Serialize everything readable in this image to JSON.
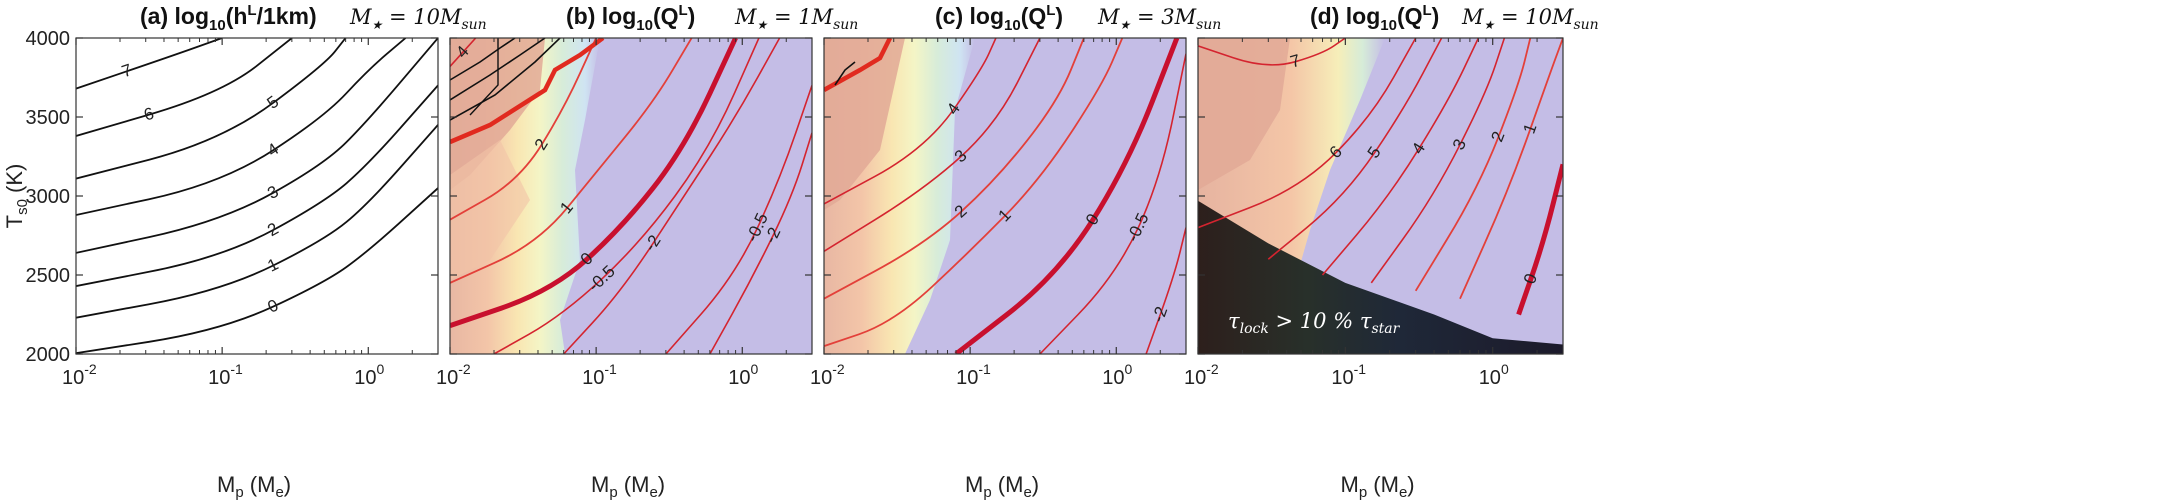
{
  "figure": {
    "y_axis_label": "T_s0 (K)",
    "y_label_main": "T",
    "y_label_sub": "s0",
    "y_label_unit": " (K)",
    "x_label_main": "M",
    "x_label_sub": "p",
    "x_label_unit": " (M",
    "x_label_unit_sub": "e",
    "x_label_close": ")",
    "x_ticks": [
      {
        "value": 0.01,
        "base": "10",
        "exp": "-2"
      },
      {
        "value": 0.1,
        "base": "10",
        "exp": "-1"
      },
      {
        "value": 1,
        "base": "10",
        "exp": "0"
      }
    ],
    "y_ticks": [
      "2000",
      "2500",
      "3000",
      "3500",
      "4000"
    ],
    "colors": {
      "line_black": "#111111",
      "line_red": "#d4242f",
      "line_thick_red": "#c8102e",
      "line_orange": "#e36a2a",
      "bg_purple": "#c4bde6",
      "bg_salmon": "#e8b7a3",
      "bg_peach": "#f6c8a8",
      "bg_yellow": "#f8f2c4",
      "bg_lightblue": "#d3e7ef",
      "dark_region": "#1c1a2b"
    },
    "annotation": {
      "text_main": "τ",
      "text_sub1": "lock",
      "text_mid": " > 10 % τ",
      "text_sub2": "star"
    }
  },
  "chart_data": [
    {
      "id": "a",
      "type": "contour",
      "title": "(a)  log10(hL/1km)",
      "title_text": "(a)  log",
      "title_sub": "10",
      "title_rest": "(h",
      "title_sup": "L",
      "title_end": "/1km)",
      "mass_note": "M★ = 10Msun",
      "mass_label": "M",
      "mass_star": "★",
      "mass_eq": " = 10M",
      "mass_sun": "sun",
      "xscale": "log",
      "xlim": [
        0.01,
        3
      ],
      "ylim": [
        2000,
        4000
      ],
      "contours": [
        {
          "level": "0",
          "points": [
            [
              0.01,
              2005
            ],
            [
              0.1,
              2150
            ],
            [
              0.5,
              2450
            ],
            [
              1,
              2650
            ],
            [
              3,
              3050
            ]
          ]
        },
        {
          "level": "1",
          "points": [
            [
              0.01,
              2230
            ],
            [
              0.1,
              2400
            ],
            [
              0.5,
              2720
            ],
            [
              1,
              2950
            ],
            [
              3,
              3450
            ]
          ]
        },
        {
          "level": "2",
          "points": [
            [
              0.01,
              2430
            ],
            [
              0.1,
              2610
            ],
            [
              0.5,
              2960
            ],
            [
              1,
              3200
            ],
            [
              3,
              3700
            ]
          ]
        },
        {
          "level": "3",
          "points": [
            [
              0.01,
              2640
            ],
            [
              0.1,
              2840
            ],
            [
              0.5,
              3200
            ],
            [
              1,
              3480
            ],
            [
              3,
              4000
            ]
          ]
        },
        {
          "level": "4",
          "points": [
            [
              0.01,
              2880
            ],
            [
              0.1,
              3080
            ],
            [
              0.5,
              3500
            ],
            [
              1,
              3800
            ],
            [
              1.8,
              4000
            ]
          ]
        },
        {
          "level": "5",
          "points": [
            [
              0.01,
              3110
            ],
            [
              0.1,
              3350
            ],
            [
              0.5,
              3830
            ],
            [
              0.7,
              4000
            ]
          ]
        },
        {
          "level": "6",
          "points": [
            [
              0.01,
              3380
            ],
            [
              0.1,
              3650
            ],
            [
              0.3,
              4000
            ]
          ]
        },
        {
          "level": "7",
          "points": [
            [
              0.01,
              3680
            ],
            [
              0.05,
              3900
            ],
            [
              0.1,
              4000
            ]
          ]
        }
      ]
    },
    {
      "id": "b",
      "type": "contour",
      "title": "(b)  log10(QL)",
      "title_text": "(b)  log",
      "title_sub": "10",
      "title_rest": "(Q",
      "title_sup": "L",
      "title_end": ")",
      "mass_note": "M★ = 1Msun",
      "mass_label": "M",
      "mass_star": "★",
      "mass_eq": " = 1M",
      "mass_sun": "sun",
      "xscale": "log",
      "xlim": [
        0.01,
        3
      ],
      "ylim": [
        2000,
        4000
      ],
      "contours": [
        {
          "level": "-2",
          "points": [
            [
              0.06,
              2000
            ],
            [
              0.15,
              2400
            ],
            [
              0.4,
              3000
            ],
            [
              0.9,
              3500
            ],
            [
              1.8,
              4000
            ]
          ]
        },
        {
          "level": "-2",
          "points": [
            [
              0.6,
              2000
            ],
            [
              1.2,
              2500
            ],
            [
              2.2,
              3000
            ],
            [
              3,
              3400
            ]
          ]
        },
        {
          "level": "-0.5",
          "points": [
            [
              0.02,
              2000
            ],
            [
              0.06,
              2250
            ],
            [
              0.2,
              2700
            ],
            [
              0.6,
              3300
            ],
            [
              1.3,
              4000
            ]
          ]
        },
        {
          "level": "-0.5",
          "points": [
            [
              0.3,
              2000
            ],
            [
              0.9,
              2500
            ],
            [
              1.8,
              3100
            ],
            [
              3,
              3700
            ]
          ]
        },
        {
          "level": "0",
          "points": [
            [
              0.01,
              2180
            ],
            [
              0.05,
              2400
            ],
            [
              0.15,
              2800
            ],
            [
              0.4,
              3300
            ],
            [
              0.9,
              4000
            ]
          ]
        },
        {
          "level": "1",
          "points": [
            [
              0.01,
              2450
            ],
            [
              0.04,
              2700
            ],
            [
              0.1,
              3150
            ],
            [
              0.25,
              3600
            ],
            [
              0.45,
              4000
            ]
          ]
        },
        {
          "level": "2",
          "points": [
            [
              0.01,
              2850
            ],
            [
              0.03,
              3100
            ],
            [
              0.06,
              3550
            ],
            [
              0.1,
              4000
            ]
          ]
        },
        {
          "level": "4",
          "points": [
            [
              0.01,
              3820
            ],
            [
              0.015,
              4000
            ]
          ]
        }
      ],
      "labels": [
        "4",
        "2",
        "1",
        "0",
        "-0.5",
        "-2",
        "2",
        "-0.5",
        "-2"
      ]
    },
    {
      "id": "c",
      "type": "contour",
      "title": "(c)  log10(QL)",
      "title_text": "(c)  log",
      "title_sub": "10",
      "title_rest": "(Q",
      "title_sup": "L",
      "title_end": ")",
      "mass_note": "M★ = 3Msun",
      "mass_label": "M",
      "mass_star": "★",
      "mass_eq": " = 3M",
      "mass_sun": "sun",
      "xscale": "log",
      "xlim": [
        0.01,
        3
      ],
      "ylim": [
        2000,
        4000
      ],
      "contours": [
        {
          "level": "1",
          "points": [
            [
              0.01,
              2050
            ],
            [
              0.03,
              2200
            ],
            [
              0.1,
              2650
            ],
            [
              0.3,
              3100
            ],
            [
              0.8,
              3700
            ],
            [
              1.1,
              4000
            ]
          ]
        },
        {
          "level": "2",
          "points": [
            [
              0.01,
              2350
            ],
            [
              0.05,
              2700
            ],
            [
              0.15,
              3100
            ],
            [
              0.4,
              3600
            ],
            [
              0.6,
              4000
            ]
          ]
        },
        {
          "level": "3",
          "points": [
            [
              0.01,
              2650
            ],
            [
              0.05,
              3050
            ],
            [
              0.15,
              3450
            ],
            [
              0.3,
              4000
            ]
          ]
        },
        {
          "level": "4",
          "points": [
            [
              0.01,
              2950
            ],
            [
              0.05,
              3300
            ],
            [
              0.12,
              3800
            ],
            [
              0.15,
              4000
            ]
          ]
        },
        {
          "level": "0",
          "points": [
            [
              0.08,
              2000
            ],
            [
              0.4,
              2500
            ],
            [
              1.2,
              3200
            ],
            [
              2.6,
              4000
            ]
          ]
        },
        {
          "level": "-0.5",
          "points": [
            [
              0.3,
              2000
            ],
            [
              1,
              2500
            ],
            [
              2,
              3100
            ],
            [
              3,
              3900
            ]
          ]
        },
        {
          "level": "-2",
          "points": [
            [
              1.6,
              2000
            ],
            [
              2.5,
              2500
            ],
            [
              3,
              2800
            ]
          ]
        }
      ],
      "labels": [
        "1",
        "2",
        "3",
        "4",
        "0",
        "-0.5",
        "-2",
        "0",
        "-0.5"
      ]
    },
    {
      "id": "d",
      "type": "contour",
      "title": "(d)  log10(QL)",
      "title_text": "(d)  log",
      "title_sub": "10",
      "title_rest": "(Q",
      "title_sup": "L",
      "title_end": ")",
      "mass_note": "M★ = 10Msun",
      "mass_label": "M",
      "mass_star": "★",
      "mass_eq": " = 10M",
      "mass_sun": "sun",
      "xscale": "log",
      "xlim": [
        0.01,
        3
      ],
      "ylim": [
        2000,
        4000
      ],
      "contours": [
        {
          "level": "6",
          "points": [
            [
              0.01,
              2800
            ],
            [
              0.05,
              3050
            ],
            [
              0.15,
              3500
            ],
            [
              0.3,
              4000
            ]
          ]
        },
        {
          "level": "5",
          "points": [
            [
              0.03,
              2600
            ],
            [
              0.1,
              3000
            ],
            [
              0.25,
              3550
            ],
            [
              0.45,
              4000
            ]
          ]
        },
        {
          "level": "4",
          "points": [
            [
              0.07,
              2500
            ],
            [
              0.2,
              3000
            ],
            [
              0.5,
              3600
            ],
            [
              0.8,
              4000
            ]
          ]
        },
        {
          "level": "3",
          "points": [
            [
              0.15,
              2450
            ],
            [
              0.4,
              3000
            ],
            [
              0.9,
              3650
            ],
            [
              1.2,
              4000
            ]
          ]
        },
        {
          "level": "2",
          "points": [
            [
              0.3,
              2400
            ],
            [
              0.8,
              3050
            ],
            [
              1.5,
              3700
            ],
            [
              1.8,
              4000
            ]
          ]
        },
        {
          "level": "1",
          "points": [
            [
              0.6,
              2350
            ],
            [
              1.3,
              3050
            ],
            [
              2.5,
              3800
            ],
            [
              3,
              4000
            ]
          ]
        },
        {
          "level": "0",
          "points": [
            [
              1.5,
              2250
            ],
            [
              2.2,
              2700
            ],
            [
              3,
              3200
            ]
          ]
        },
        {
          "level": "7",
          "points": [
            [
              0.01,
              3950
            ],
            [
              0.03,
              3800
            ],
            [
              0.07,
              3900
            ],
            [
              0.1,
              4000
            ]
          ]
        }
      ],
      "labels": [
        "7",
        "6",
        "5",
        "4",
        "3",
        "2",
        "1",
        "0",
        "0"
      ],
      "dark_region_boundary": [
        [
          0.01,
          2970
        ],
        [
          0.03,
          2700
        ],
        [
          0.1,
          2450
        ],
        [
          0.4,
          2250
        ],
        [
          1,
          2100
        ],
        [
          3,
          2060
        ]
      ]
    }
  ]
}
